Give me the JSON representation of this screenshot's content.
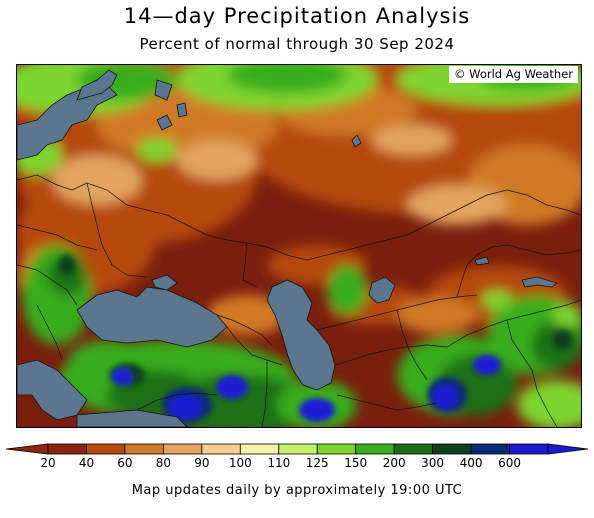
{
  "title": "14—day Precipitation Analysis",
  "subtitle": "Percent of normal through 30 Sep 2024",
  "credit": "© World Ag Weather",
  "footer": "Map updates daily by approximately 19:00 UTC",
  "legend": {
    "levels": [
      "20",
      "40",
      "60",
      "80",
      "90",
      "100",
      "110",
      "125",
      "150",
      "200",
      "300",
      "400",
      "600"
    ],
    "colors": [
      "#8b2412",
      "#b5490e",
      "#d07a27",
      "#e2a45e",
      "#f2cf8e",
      "#f4f2a6",
      "#c7f06a",
      "#7ed42d",
      "#39ad1f",
      "#1a6f13",
      "#0f3f1c",
      "#0c2a78",
      "#1a1ad4"
    ],
    "end_low_color": "#8b2412",
    "end_high_color": "#1a1ad4"
  },
  "map_colors": {
    "water": "#5c7690",
    "base_dry": "#7a1e0e",
    "border": "#111111"
  }
}
